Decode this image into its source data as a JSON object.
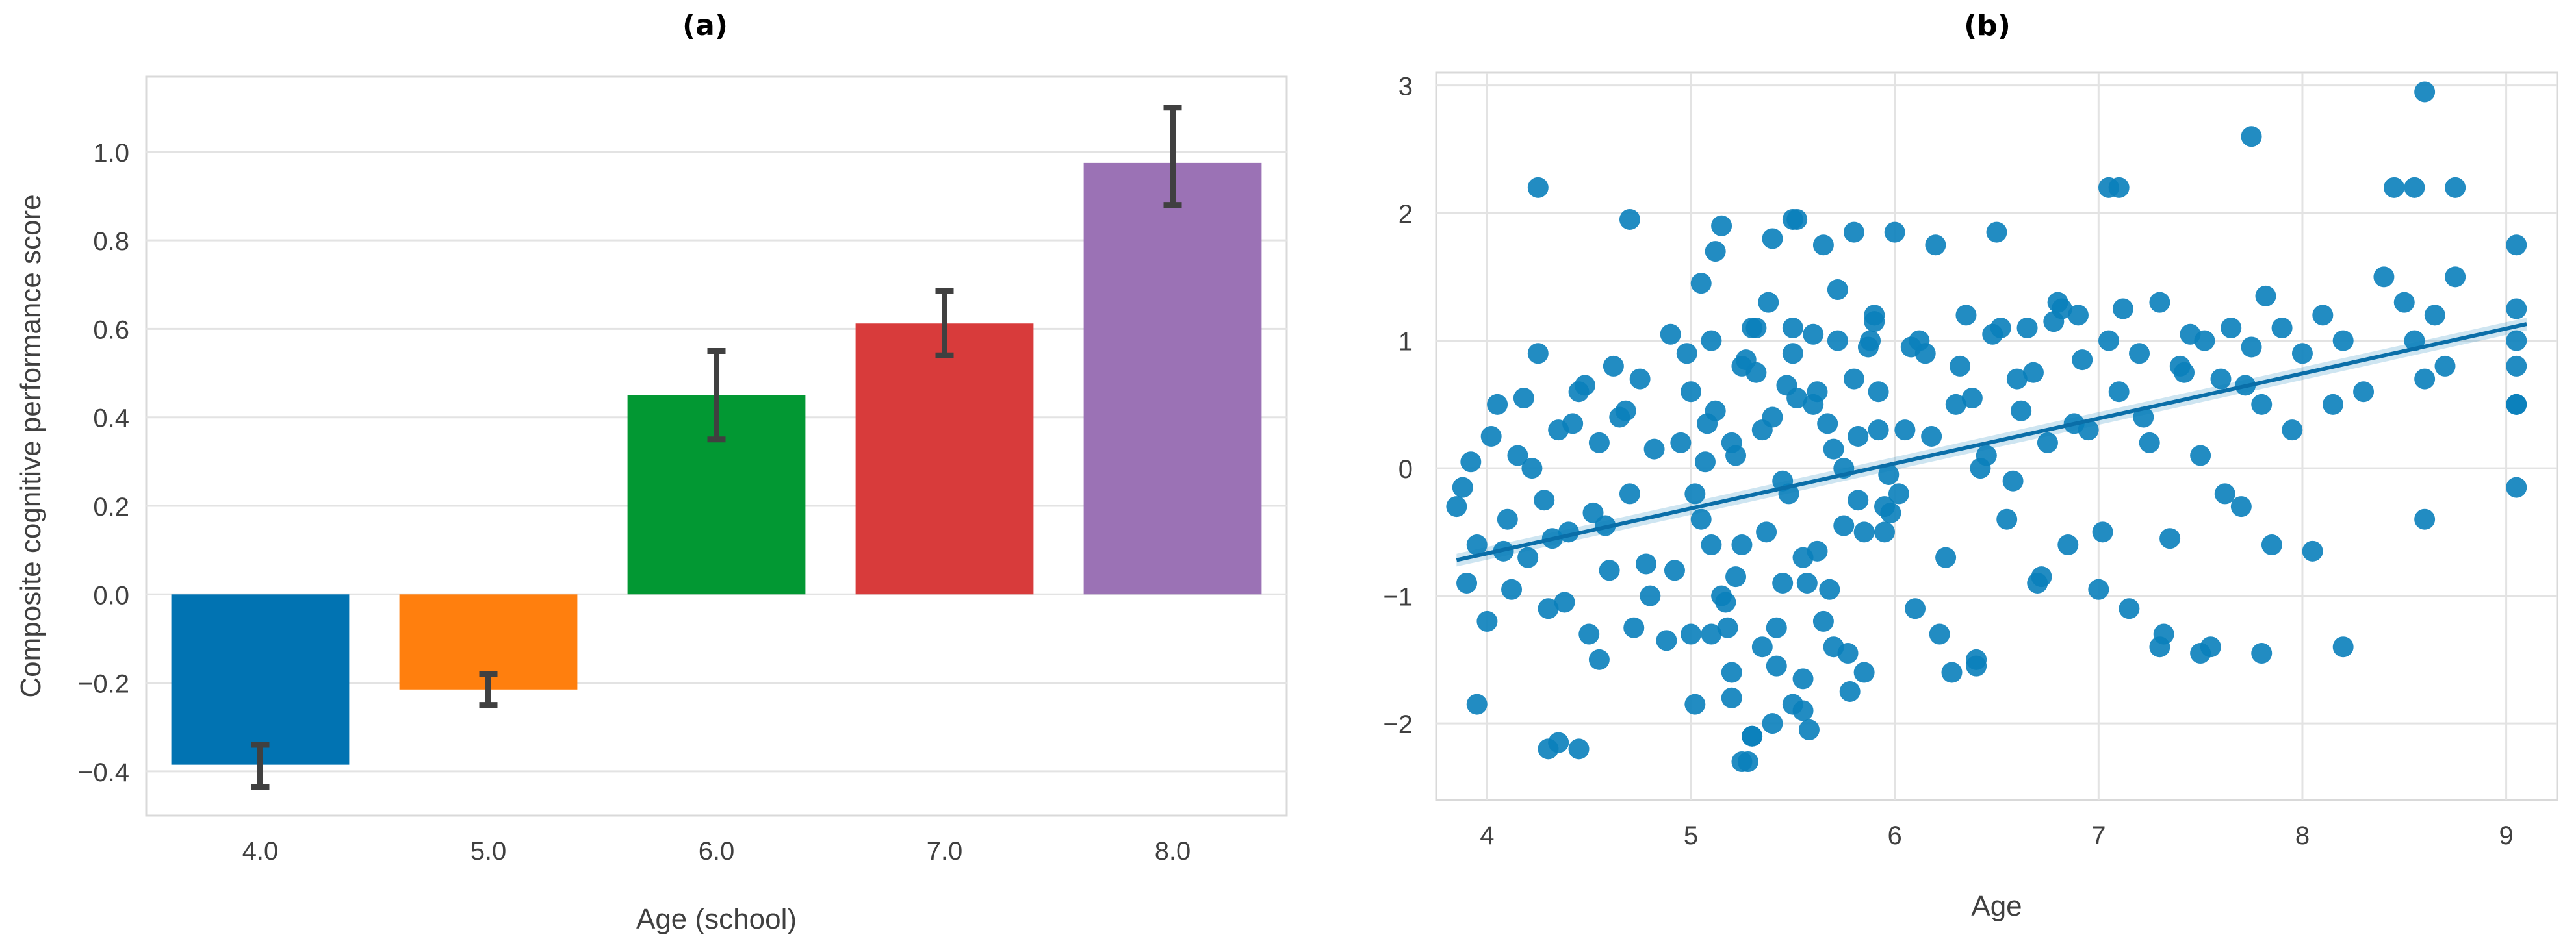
{
  "chart_data": [
    {
      "panel_label": "(a)",
      "type": "bar",
      "categories": [
        "4.0",
        "5.0",
        "6.0",
        "7.0",
        "8.0"
      ],
      "values": [
        -0.385,
        -0.215,
        0.45,
        0.612,
        0.975
      ],
      "error_low": [
        -0.435,
        -0.25,
        0.35,
        0.54,
        0.88
      ],
      "error_high": [
        -0.34,
        -0.18,
        0.55,
        0.685,
        1.1
      ],
      "colors": [
        "#0173b2",
        "#ff7f0e",
        "#029833",
        "#d83b3b",
        "#9b72b5"
      ],
      "xlabel": "Age (school)",
      "ylabel": "Composite cognitive performance score",
      "yticks": [
        -0.4,
        -0.2,
        0.0,
        0.2,
        0.4,
        0.6,
        0.8,
        1.0
      ],
      "ytick_labels": [
        "−0.4",
        "−0.2",
        "0.0",
        "0.2",
        "0.4",
        "0.6",
        "0.8",
        "1.0"
      ],
      "ylim": [
        -0.5,
        1.17
      ],
      "grid": true,
      "error_color": "#404040"
    },
    {
      "panel_label": "(b)",
      "type": "scatter",
      "xlabel": "Age",
      "ylabel": "",
      "xticks": [
        4,
        5,
        6,
        7,
        8,
        9
      ],
      "yticks": [
        -2,
        -1,
        0,
        1,
        2,
        3
      ],
      "ytick_labels": [
        "−2",
        "−1",
        "0",
        "1",
        "2",
        "3"
      ],
      "xlim": [
        3.75,
        9.25
      ],
      "ylim": [
        -2.6,
        3.1
      ],
      "grid": true,
      "point_color": "#0a7fbb",
      "regression_line": {
        "x": [
          3.85,
          9.1
        ],
        "y": [
          -0.72,
          1.13
        ],
        "ci_halfwidth": 0.05
      },
      "points": {
        "x": [
          3.85,
          3.9,
          3.95,
          4.0,
          4.05,
          4.1,
          4.15,
          4.2,
          4.25,
          4.3,
          4.35,
          4.4,
          4.45,
          4.5,
          4.55,
          4.6,
          4.65,
          4.7,
          4.75,
          4.8,
          3.88,
          4.02,
          4.12,
          4.22,
          4.32,
          4.42,
          4.52,
          4.62,
          4.72,
          4.82,
          3.92,
          4.08,
          4.18,
          4.28,
          4.38,
          4.48,
          4.58,
          4.68,
          4.78,
          4.88,
          4.9,
          4.95,
          5.0,
          5.05,
          5.1,
          5.15,
          5.2,
          5.25,
          5.3,
          5.35,
          5.4,
          5.45,
          5.5,
          5.55,
          5.6,
          5.65,
          5.7,
          5.75,
          5.8,
          5.85,
          4.92,
          4.98,
          5.02,
          5.08,
          5.12,
          5.18,
          5.22,
          5.28,
          5.32,
          5.38,
          5.42,
          5.48,
          5.52,
          5.58,
          5.62,
          5.68,
          5.72,
          5.78,
          5.82,
          5.88,
          5.0,
          5.05,
          5.1,
          5.15,
          5.2,
          5.25,
          5.3,
          5.35,
          5.4,
          5.45,
          5.5,
          5.55,
          5.6,
          5.65,
          5.7,
          5.75,
          5.8,
          5.85,
          5.9,
          5.95,
          5.02,
          5.12,
          5.22,
          5.32,
          5.42,
          5.52,
          5.62,
          5.72,
          5.82,
          5.92,
          5.07,
          5.17,
          5.27,
          5.37,
          5.47,
          5.57,
          5.67,
          5.77,
          5.87,
          5.97,
          5.9,
          5.95,
          6.0,
          6.05,
          6.1,
          6.15,
          6.2,
          6.25,
          6.3,
          6.35,
          6.4,
          6.45,
          6.5,
          6.55,
          6.6,
          6.65,
          6.7,
          6.75,
          6.8,
          6.85,
          5.92,
          6.02,
          6.12,
          6.22,
          6.32,
          6.42,
          6.52,
          6.62,
          6.72,
          6.82,
          5.98,
          6.08,
          6.18,
          6.28,
          6.38,
          6.48,
          6.58,
          6.68,
          6.78,
          6.88,
          6.9,
          6.95,
          7.0,
          7.05,
          7.1,
          7.15,
          7.2,
          7.25,
          7.3,
          7.35,
          7.4,
          7.45,
          7.5,
          7.55,
          7.6,
          7.65,
          7.7,
          7.75,
          7.8,
          7.85,
          6.92,
          7.02,
          7.12,
          7.22,
          7.32,
          7.42,
          7.52,
          7.62,
          7.72,
          7.82,
          7.9,
          7.95,
          8.0,
          8.05,
          8.1,
          8.15,
          8.2,
          8.3,
          8.4,
          8.5,
          8.55,
          8.6,
          8.65,
          8.7,
          8.75,
          9.05,
          9.05,
          9.05,
          9.05,
          9.05,
          4.25,
          4.7,
          5.5,
          7.05,
          7.1,
          7.75,
          8.6,
          8.45,
          8.55,
          8.75,
          3.95,
          4.3,
          4.35,
          4.45,
          4.55,
          5.1,
          5.2,
          5.25,
          5.3,
          5.4,
          5.5,
          5.55,
          6.4,
          7.3,
          7.5,
          7.8,
          8.2,
          8.6,
          9.05,
          9.05
        ],
        "y": [
          -0.3,
          -0.9,
          -0.6,
          -1.2,
          0.5,
          -0.4,
          0.1,
          -0.7,
          0.9,
          -1.1,
          0.3,
          -0.5,
          0.6,
          -1.3,
          0.2,
          -0.8,
          0.4,
          -0.2,
          0.7,
          -1.0,
          -0.15,
          0.25,
          -0.95,
          0.0,
          -0.55,
          0.35,
          -0.35,
          0.8,
          -1.25,
          0.15,
          0.05,
          -0.65,
          0.55,
          -0.25,
          -1.05,
          0.65,
          -0.45,
          0.45,
          -0.75,
          -1.35,
          1.05,
          0.2,
          -1.3,
          1.45,
          -0.6,
          1.9,
          -1.6,
          0.8,
          -2.1,
          0.3,
          1.8,
          -0.9,
          1.1,
          -1.9,
          0.5,
          1.75,
          -1.4,
          0.0,
          1.85,
          -0.5,
          -0.8,
          0.9,
          -1.85,
          0.35,
          1.7,
          -1.25,
          0.1,
          -2.3,
          0.75,
          1.3,
          -1.55,
          -0.2,
          1.95,
          -2.05,
          0.6,
          -0.95,
          1.4,
          -1.75,
          0.25,
          1.0,
          0.6,
          -0.4,
          1.0,
          -1.0,
          0.2,
          -0.6,
          1.1,
          -1.4,
          0.4,
          -0.1,
          0.9,
          -0.7,
          1.05,
          -1.2,
          0.15,
          -0.45,
          0.7,
          -1.6,
          1.15,
          -0.3,
          -0.2,
          0.45,
          -0.85,
          1.1,
          -1.25,
          0.55,
          -0.65,
          1.0,
          -0.25,
          0.3,
          0.05,
          -1.05,
          0.85,
          -0.5,
          0.65,
          -0.9,
          0.35,
          -1.45,
          0.95,
          -0.05,
          1.2,
          -0.5,
          1.85,
          0.3,
          -1.1,
          0.9,
          1.75,
          -0.7,
          0.5,
          1.2,
          -1.5,
          0.1,
          1.85,
          -0.4,
          0.7,
          1.1,
          -0.9,
          0.2,
          1.3,
          -0.6,
          0.6,
          -0.2,
          1.0,
          -1.3,
          0.8,
          0.0,
          1.1,
          0.45,
          -0.85,
          1.25,
          -0.35,
          0.95,
          0.25,
          -1.6,
          0.55,
          1.05,
          -0.1,
          0.75,
          1.15,
          0.35,
          1.2,
          0.3,
          -0.95,
          1.0,
          0.6,
          -1.1,
          0.9,
          0.2,
          1.3,
          -0.55,
          0.8,
          1.05,
          0.1,
          -1.4,
          0.7,
          1.1,
          -0.3,
          0.95,
          0.5,
          -0.6,
          0.85,
          -0.5,
          1.25,
          0.4,
          -1.3,
          0.75,
          1.0,
          -0.2,
          0.65,
          1.35,
          1.1,
          0.3,
          0.9,
          -0.65,
          1.2,
          0.5,
          1.0,
          0.6,
          1.5,
          1.3,
          1.0,
          0.7,
          1.2,
          0.8,
          1.5,
          1.75,
          1.25,
          1.0,
          0.5,
          -0.15,
          2.2,
          1.95,
          1.95,
          2.2,
          2.2,
          2.6,
          2.95,
          2.2,
          2.2,
          2.2,
          -1.85,
          -2.2,
          -2.15,
          -2.2,
          -1.5,
          -1.3,
          -1.8,
          -2.3,
          -2.1,
          -2.0,
          -1.85,
          -1.65,
          -1.55,
          -1.4,
          -1.45,
          -1.45,
          -1.4,
          -0.4,
          0.8,
          0.5
        ]
      }
    }
  ]
}
